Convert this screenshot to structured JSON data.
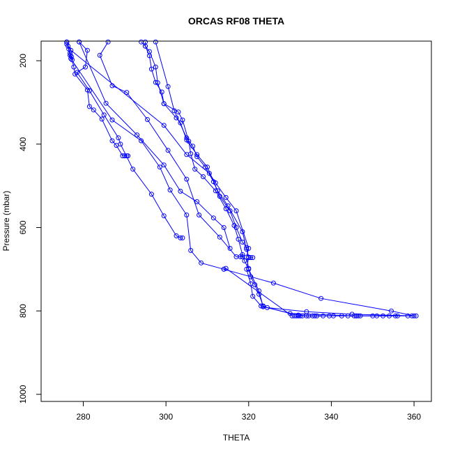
{
  "chart_data": {
    "type": "line",
    "title": "ORCAS RF08 THETA",
    "xlabel": "THETA",
    "ylabel": "Pressure (mbar)",
    "xlim": [
      269.8,
      364.2
    ],
    "ylim": [
      1017,
      153
    ],
    "y_reversed": true,
    "x_ticks": [
      280,
      300,
      320,
      340,
      360
    ],
    "y_ticks": [
      200,
      400,
      600,
      800,
      1000
    ],
    "grid": false,
    "legend": "none",
    "marker": "open-circle",
    "color": "#0000ff",
    "series": [
      {
        "points": [
          [
            276.0,
            155
          ],
          [
            276.3,
            165
          ],
          [
            276.5,
            172
          ],
          [
            276.8,
            182
          ],
          [
            277.1,
            190
          ],
          [
            277.3,
            198
          ],
          [
            277.7,
            215
          ],
          [
            278.0,
            232
          ],
          [
            281.0,
            270
          ],
          [
            281.5,
            310
          ],
          [
            282.5,
            318
          ],
          [
            284.5,
            340
          ],
          [
            287.0,
            392
          ],
          [
            288.0,
            403
          ],
          [
            289.5,
            428
          ],
          [
            290.0,
            428
          ],
          [
            290.5,
            428
          ],
          [
            290.8,
            428
          ]
        ]
      },
      {
        "points": [
          [
            279.0,
            155
          ],
          [
            281.0,
            175
          ],
          [
            280.5,
            215
          ],
          [
            278.5,
            228
          ],
          [
            281.5,
            272
          ],
          [
            285.0,
            330
          ],
          [
            288.5,
            385
          ],
          [
            289.0,
            400
          ],
          [
            292.0,
            460
          ],
          [
            296.5,
            520
          ],
          [
            299.5,
            572
          ],
          [
            302.5,
            620
          ],
          [
            303.5,
            625
          ],
          [
            304.0,
            625
          ]
        ]
      },
      {
        "points": [
          [
            286.0,
            155
          ],
          [
            284.0,
            187
          ],
          [
            287.0,
            260
          ],
          [
            290.5,
            276
          ],
          [
            295.5,
            341
          ],
          [
            300.5,
            415
          ],
          [
            305.0,
            484
          ],
          [
            308.0,
            570
          ],
          [
            313.0,
            623
          ],
          [
            317.0,
            670
          ],
          [
            318.0,
            670
          ],
          [
            318.5,
            670
          ]
        ]
      },
      {
        "points": [
          [
            279.0,
            155
          ],
          [
            285.5,
            302
          ],
          [
            293.0,
            378
          ],
          [
            299.5,
            450
          ],
          [
            303.5,
            513
          ],
          [
            307.5,
            538
          ],
          [
            311.5,
            577
          ],
          [
            314.0,
            600
          ],
          [
            315.5,
            650
          ]
        ]
      },
      {
        "points": [
          [
            276.0,
            160
          ],
          [
            277.0,
            175
          ],
          [
            299.5,
            355
          ],
          [
            305.0,
            425
          ],
          [
            310.5,
            470
          ],
          [
            312.0,
            493
          ],
          [
            314.5,
            528
          ],
          [
            317.0,
            560
          ],
          [
            320.0,
            650
          ],
          [
            319.5,
            671
          ],
          [
            320.0,
            698
          ],
          [
            320.5,
            718
          ],
          [
            321.5,
            737
          ],
          [
            322.5,
            760
          ],
          [
            323.5,
            788
          ],
          [
            324.5,
            792
          ],
          [
            334.0,
            802
          ],
          [
            345.0,
            808
          ],
          [
            360.5,
            812
          ]
        ]
      },
      {
        "points": [
          [
            294.0,
            155
          ],
          [
            295.0,
            165
          ],
          [
            296.0,
            178
          ],
          [
            297.5,
            215
          ],
          [
            298.0,
            253
          ],
          [
            299.5,
            303
          ],
          [
            302.5,
            337
          ],
          [
            303.5,
            349
          ],
          [
            305.0,
            390
          ],
          [
            307.5,
            425
          ],
          [
            310.0,
            455
          ],
          [
            312.5,
            512
          ],
          [
            315.0,
            548
          ],
          [
            318.5,
            610
          ],
          [
            319.5,
            652
          ],
          [
            320.0,
            671
          ],
          [
            319.5,
            700
          ],
          [
            320.5,
            735
          ],
          [
            321.0,
            765
          ],
          [
            323.0,
            788
          ],
          [
            330.0,
            806
          ],
          [
            346.0,
            812
          ],
          [
            351.0,
            812
          ],
          [
            356.0,
            812
          ]
        ]
      },
      {
        "points": [
          [
            295.0,
            155
          ],
          [
            295.0,
            165
          ],
          [
            296.0,
            188
          ],
          [
            296.5,
            220
          ],
          [
            297.5,
            252
          ],
          [
            299.0,
            275
          ],
          [
            299.5,
            303
          ],
          [
            303.0,
            323
          ],
          [
            304.0,
            342
          ],
          [
            305.5,
            393
          ],
          [
            306.0,
            423
          ],
          [
            307.0,
            460
          ],
          [
            309.0,
            478
          ],
          [
            312.0,
            512
          ],
          [
            314.5,
            555
          ],
          [
            316.5,
            595
          ],
          [
            317.5,
            628
          ],
          [
            318.5,
            665
          ],
          [
            319.0,
            680
          ],
          [
            320.0,
            700
          ],
          [
            322.5,
            752
          ],
          [
            323.5,
            790
          ],
          [
            332.0,
            810
          ],
          [
            334.0,
            812
          ],
          [
            336.0,
            812
          ],
          [
            338.0,
            812
          ]
        ]
      },
      {
        "points": [
          [
            297.5,
            155
          ],
          [
            300.5,
            262
          ],
          [
            302.0,
            320
          ],
          [
            305.0,
            385
          ],
          [
            306.5,
            405
          ],
          [
            307.5,
            430
          ],
          [
            309.5,
            455
          ],
          [
            311.5,
            490
          ],
          [
            313.0,
            525
          ],
          [
            315.5,
            560
          ],
          [
            317.0,
            600
          ],
          [
            318.5,
            635
          ],
          [
            319.5,
            648
          ],
          [
            320.0,
            672
          ],
          [
            320.5,
            672
          ],
          [
            321.0,
            672
          ]
        ]
      },
      {
        "points": [
          [
            276.0,
            155
          ],
          [
            276.8,
            187
          ],
          [
            277.0,
            195
          ],
          [
            287.0,
            342
          ],
          [
            294.0,
            392
          ],
          [
            298.5,
            455
          ],
          [
            301.0,
            510
          ],
          [
            305.0,
            570
          ],
          [
            306.0,
            655
          ],
          [
            308.5,
            685
          ],
          [
            314.0,
            700
          ],
          [
            326.0,
            733
          ],
          [
            337.5,
            770
          ],
          [
            354.5,
            800
          ],
          [
            360.0,
            812
          ]
        ]
      },
      {
        "points": [
          [
            314.0,
            700
          ],
          [
            314.5,
            698
          ],
          [
            330.5,
            812
          ],
          [
            331.0,
            812
          ],
          [
            331.5,
            812
          ],
          [
            332.0,
            812
          ],
          [
            332.5,
            812
          ],
          [
            333.0,
            812
          ],
          [
            334.5,
            812
          ],
          [
            335.5,
            812
          ],
          [
            336.5,
            812
          ],
          [
            339.5,
            812
          ],
          [
            340.5,
            812
          ],
          [
            342.5,
            812
          ],
          [
            344.0,
            812
          ],
          [
            345.5,
            812
          ],
          [
            346.0,
            812
          ],
          [
            346.5,
            812
          ],
          [
            347.0,
            812
          ],
          [
            350.0,
            812
          ],
          [
            352.5,
            812
          ],
          [
            354.0,
            812
          ],
          [
            355.5,
            812
          ],
          [
            358.5,
            812
          ],
          [
            359.5,
            812
          ]
        ]
      }
    ]
  }
}
